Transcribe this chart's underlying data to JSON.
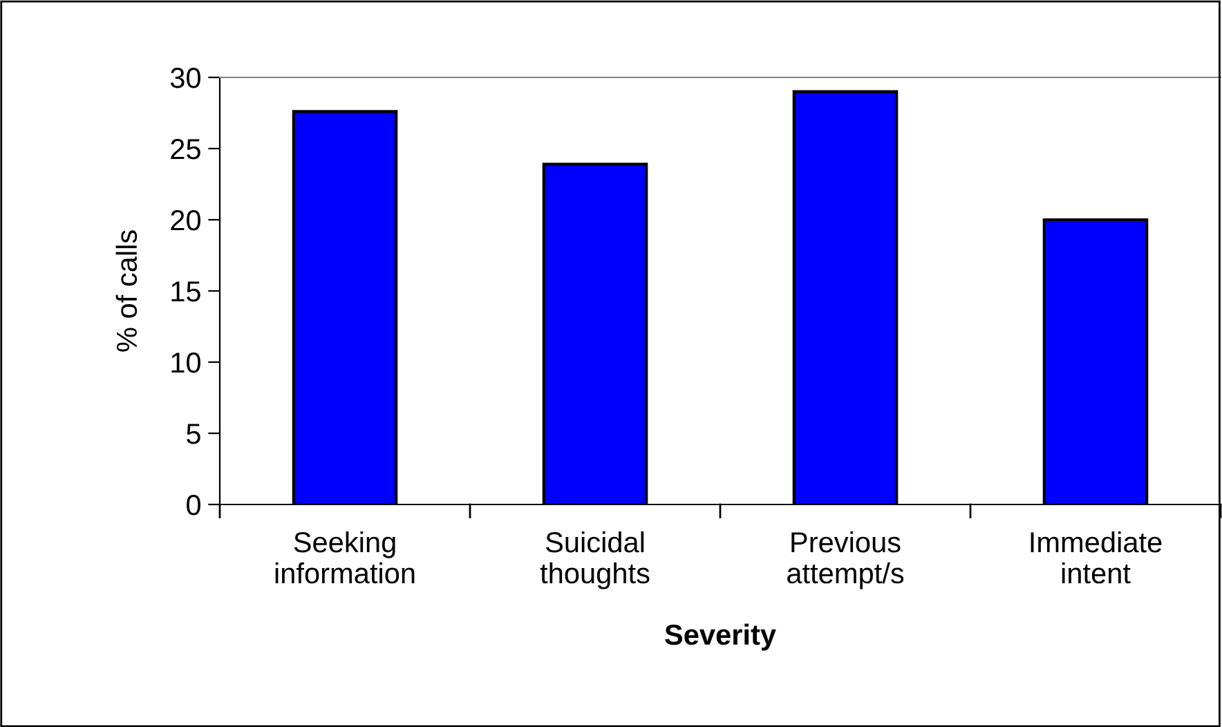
{
  "chart_data": {
    "type": "bar",
    "xlabel": "Severity",
    "ylabel": "% of calls",
    "categories": [
      "Seeking\ninformation",
      "Suicidal\nthoughts",
      "Previous\nattempt/s",
      "Immediate\nintent"
    ],
    "values": [
      27.6,
      23.9,
      29.0,
      20.0
    ],
    "color": "#0000ff",
    "ylim": [
      0,
      30
    ],
    "yticks": [
      0,
      5,
      10,
      15,
      20,
      25,
      30
    ],
    "grid": false
  }
}
